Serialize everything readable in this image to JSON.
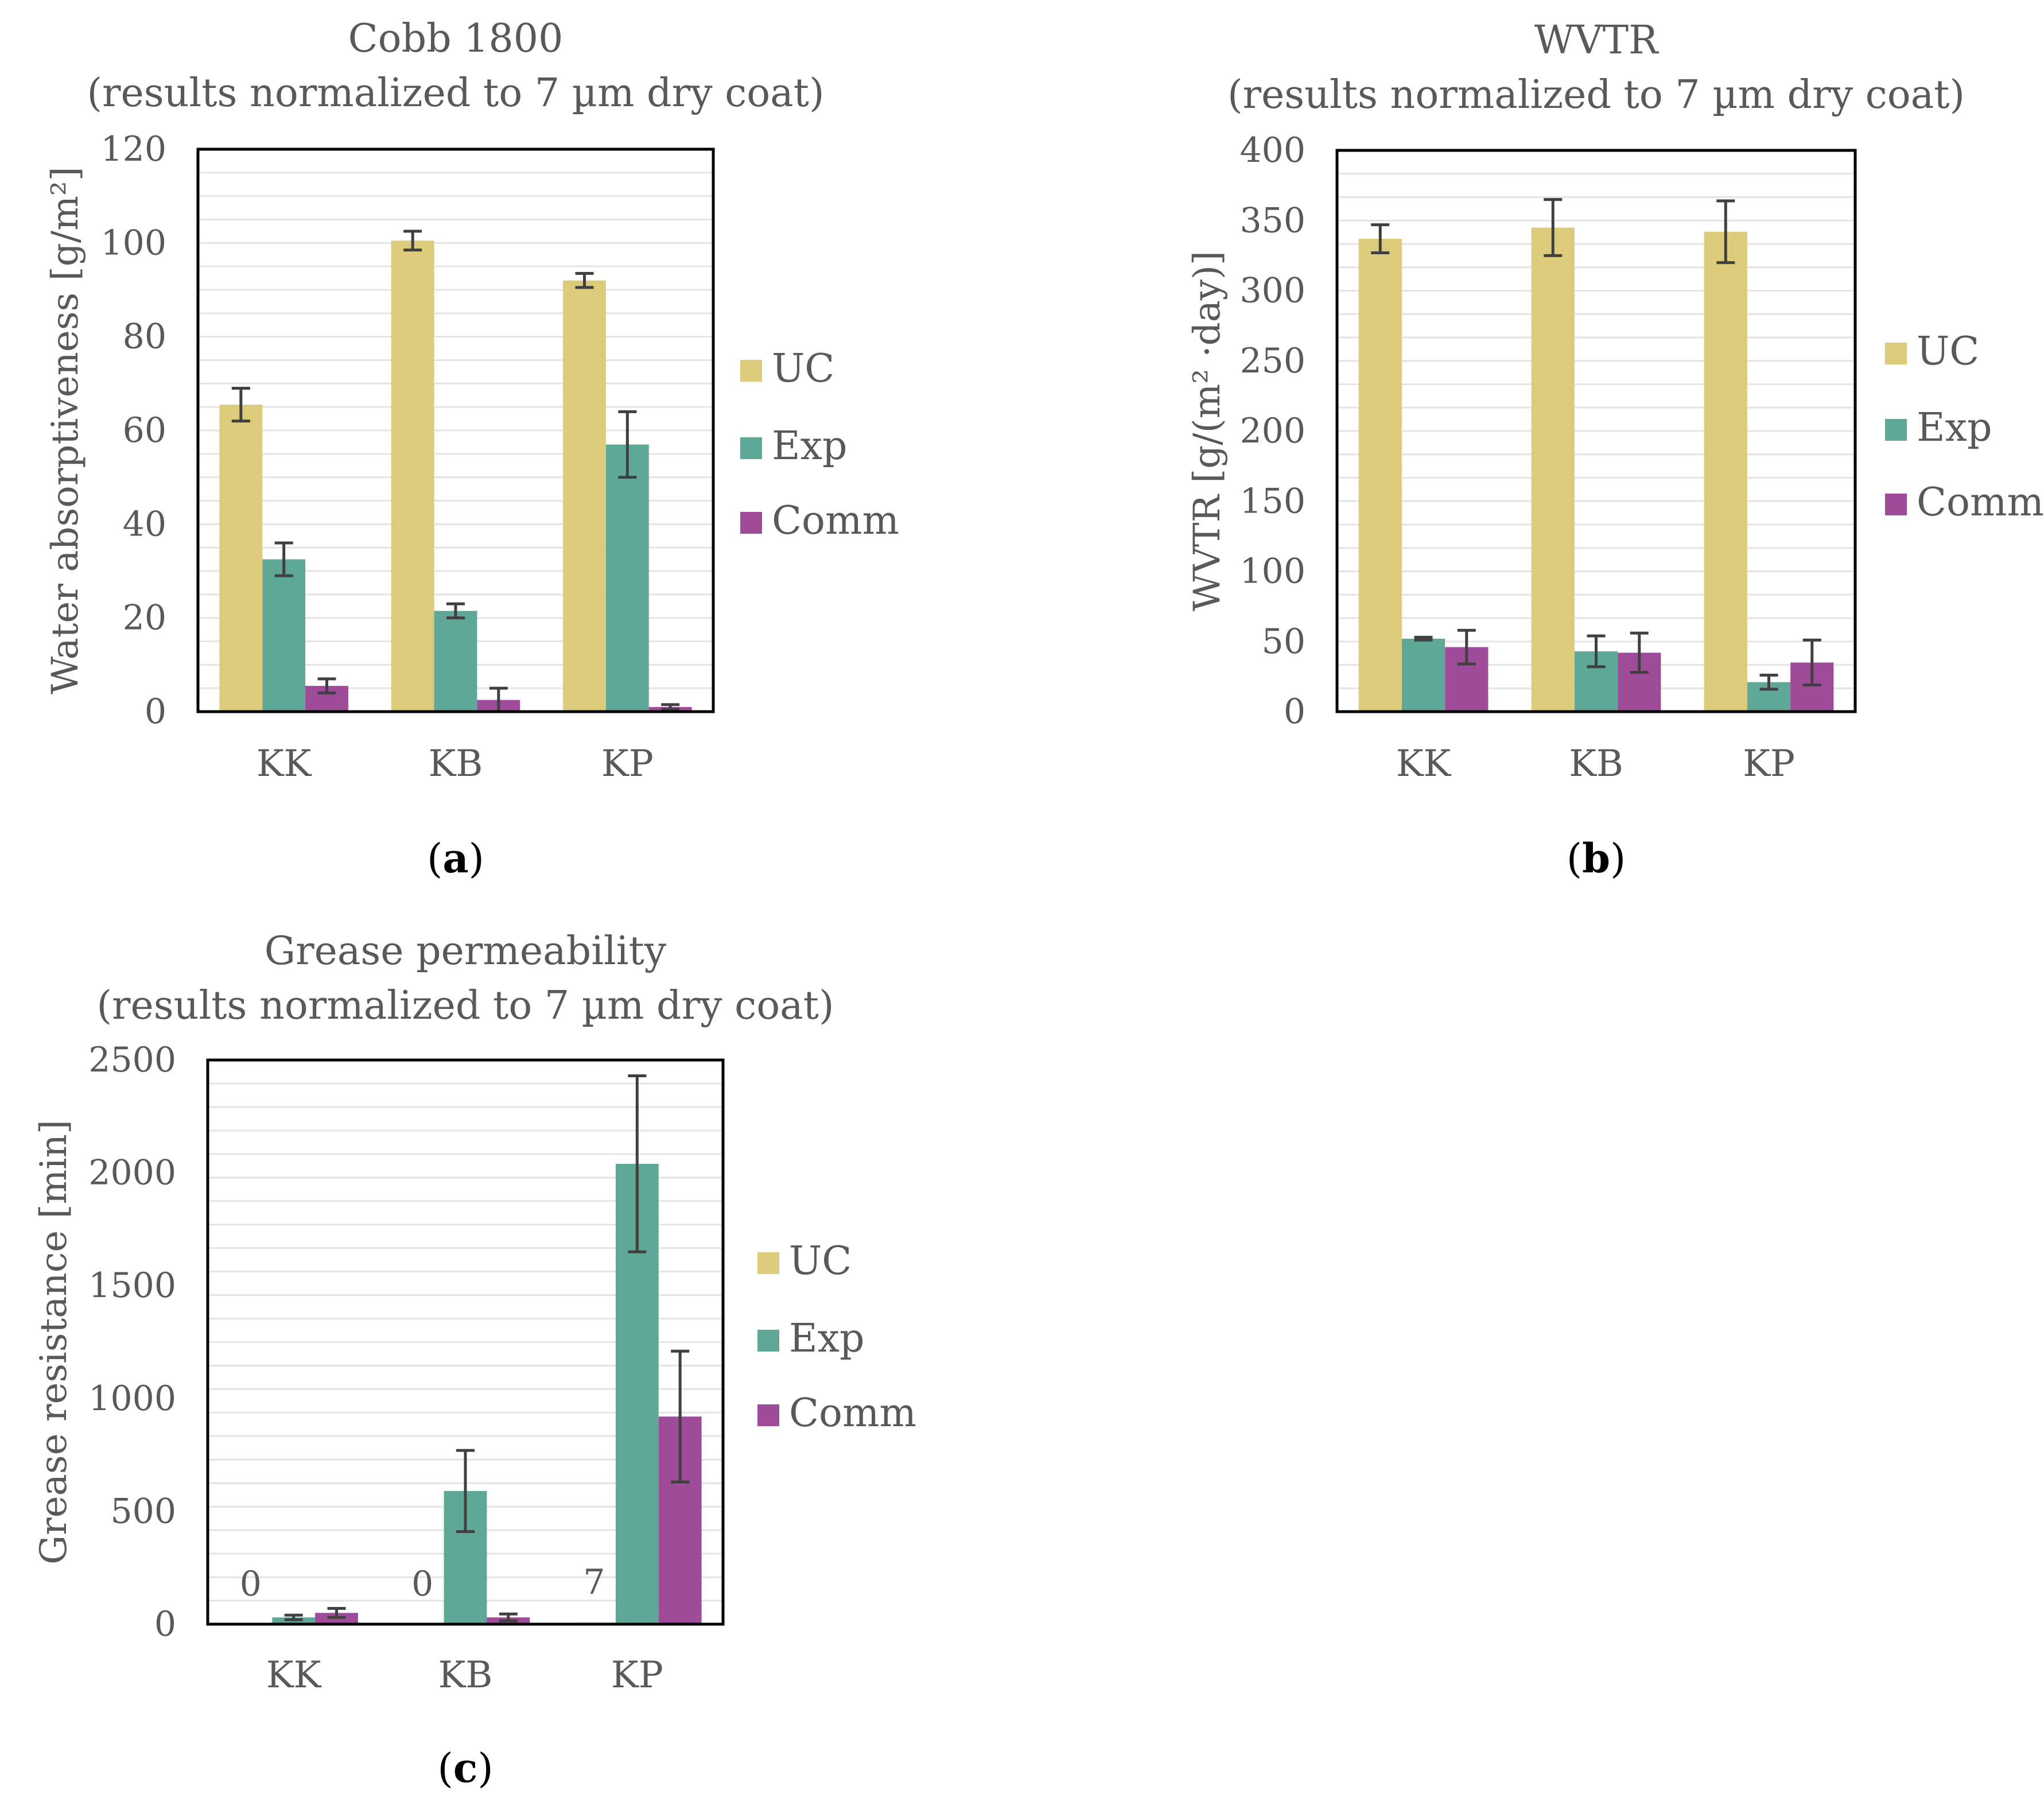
{
  "colors": {
    "UC": "#dccb7b",
    "Exp": "#5fa897",
    "Comm": "#9e4b9a"
  },
  "panel_labels": [
    {
      "open": "(",
      "letter": "a",
      "close": ")"
    },
    {
      "open": "(",
      "letter": "b",
      "close": ")"
    },
    {
      "open": "(",
      "letter": "c",
      "close": ")"
    }
  ],
  "chart_data": [
    {
      "type": "bar",
      "title": [
        "Cobb 1800",
        "(results normalized to 7 µm dry coat)"
      ],
      "xlabel": "",
      "ylabel": "Water absorptiveness [g/m²]",
      "ylim": [
        0,
        120
      ],
      "yticks": [
        "0",
        "20",
        "40",
        "60",
        "80",
        "100",
        "120"
      ],
      "ytick_values": [
        0,
        20,
        40,
        60,
        80,
        100,
        120
      ],
      "grid": true,
      "legend": "right",
      "categories": [
        "KK",
        "KB",
        "KP"
      ],
      "series": [
        {
          "name": "UC",
          "values": [
            65.5,
            100.5,
            92
          ],
          "errors": [
            3.5,
            2,
            1.5
          ]
        },
        {
          "name": "Exp",
          "values": [
            32.5,
            21.5,
            57
          ],
          "errors": [
            3.5,
            1.5,
            7
          ]
        },
        {
          "name": "Comm",
          "values": [
            5.5,
            2.5,
            1
          ],
          "errors": [
            1.5,
            2.5,
            0.5
          ]
        }
      ],
      "data_labels": []
    },
    {
      "type": "bar",
      "title": [
        "WVTR",
        "(results normalized to 7 µm dry coat)"
      ],
      "xlabel": "",
      "ylabel": "WVTR [g/(m² ·day)]",
      "ylim": [
        0,
        400
      ],
      "yticks": [
        "0",
        "50",
        "100",
        "150",
        "200",
        "250",
        "300",
        "350",
        "400"
      ],
      "ytick_values": [
        0,
        50,
        100,
        150,
        200,
        250,
        300,
        350,
        400
      ],
      "grid": true,
      "legend": "right",
      "categories": [
        "KK",
        "KB",
        "KP"
      ],
      "series": [
        {
          "name": "UC",
          "values": [
            337,
            345,
            342
          ],
          "errors": [
            10,
            20,
            22
          ]
        },
        {
          "name": "Exp",
          "values": [
            52,
            43,
            21
          ],
          "errors": [
            1,
            11,
            5
          ]
        },
        {
          "name": "Comm",
          "values": [
            46,
            42,
            35
          ],
          "errors": [
            12,
            14,
            16
          ]
        }
      ],
      "data_labels": []
    },
    {
      "type": "bar",
      "title": [
        "Grease permeability",
        "(results normalized to 7 µm dry coat)"
      ],
      "xlabel": "",
      "ylabel": "Grease resistance [min]",
      "ylim": [
        0,
        2500
      ],
      "yticks": [
        "0",
        "500",
        "1000",
        "1500",
        "2000",
        "2500"
      ],
      "ytick_values": [
        0,
        500,
        1000,
        1500,
        2000,
        2500
      ],
      "grid": true,
      "legend": "right",
      "categories": [
        "KK",
        "KB",
        "KP"
      ],
      "series": [
        {
          "name": "UC",
          "values": [
            0,
            0,
            7
          ],
          "errors": [
            0,
            0,
            0
          ]
        },
        {
          "name": "Exp",
          "values": [
            30,
            590,
            2040
          ],
          "errors": [
            10,
            180,
            390
          ]
        },
        {
          "name": "Comm",
          "values": [
            50,
            30,
            920
          ],
          "errors": [
            20,
            15,
            290
          ]
        }
      ],
      "data_labels": [
        {
          "series": "UC",
          "category": "KK",
          "text": "0"
        },
        {
          "series": "UC",
          "category": "KB",
          "text": "0"
        },
        {
          "series": "UC",
          "category": "KP",
          "text": "7"
        }
      ]
    }
  ]
}
